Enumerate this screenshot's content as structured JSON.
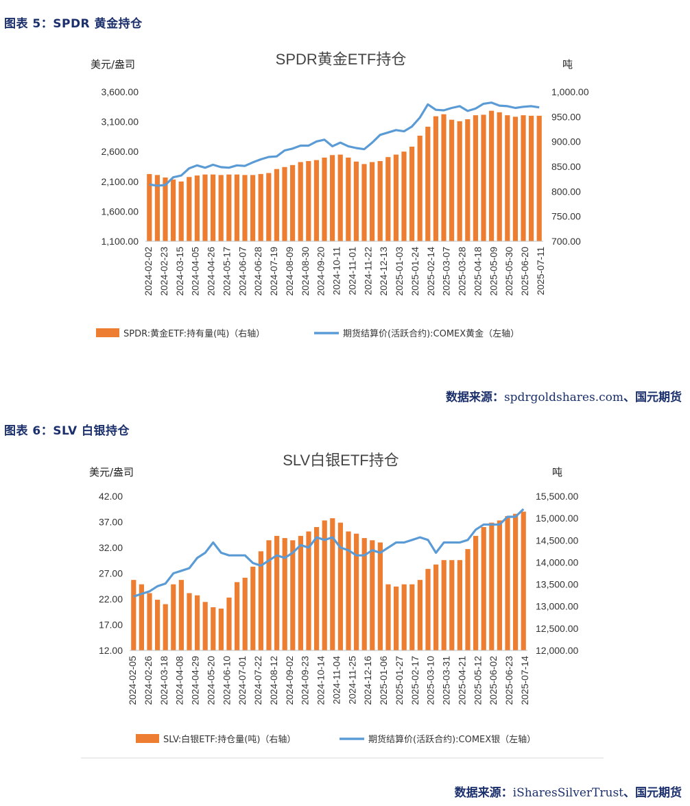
{
  "figures": [
    {
      "caption": "图表 5：SPDR 黄金持仓",
      "source_label": "数据来源：",
      "source_text": "spdrgoldshares.com",
      "source_sep": "、",
      "source_org": "国元期货",
      "chart_data": {
        "type": "bar",
        "title": "SPDR黄金ETF持仓",
        "left_unit": "美元/盎司",
        "right_unit": "吨",
        "left_ticks": [
          "3,600.00",
          "3,100.00",
          "2,600.00",
          "2,100.00",
          "1,600.00",
          "1,100.00"
        ],
        "right_ticks": [
          "1,000.00",
          "950.00",
          "900.00",
          "850.00",
          "800.00",
          "750.00",
          "700.00"
        ],
        "ylim_left": [
          1100,
          3600
        ],
        "ylim_right": [
          700,
          1000
        ],
        "x_labels": [
          "2024-02-02",
          "2024-02-23",
          "2024-03-15",
          "2024-04-05",
          "2024-04-26",
          "2024-05-17",
          "2024-06-07",
          "2024-06-28",
          "2024-07-19",
          "2024-08-09",
          "2024-08-30",
          "2024-09-20",
          "2024-10-11",
          "2024-11-01",
          "2024-11-22",
          "2024-12-13",
          "2025-01-03",
          "2025-01-24",
          "2025-02-14",
          "2025-03-07",
          "2025-03-28",
          "2025-04-18",
          "2025-05-09",
          "2025-05-30",
          "2025-06-20",
          "2025-07-11"
        ],
        "bar_series": {
          "name": "SPDR:黄金ETF:持有量(吨)（右轴）",
          "color": "#ed7d31",
          "values": [
            835,
            833,
            828,
            824,
            820,
            829,
            832,
            834,
            834,
            833,
            834,
            834,
            833,
            833,
            835,
            837,
            845,
            849,
            853,
            859,
            861,
            863,
            868,
            873,
            874,
            868,
            860,
            855,
            859,
            861,
            869,
            874,
            880,
            890,
            912,
            930,
            951,
            955,
            944,
            941,
            945,
            953,
            954,
            962,
            959,
            953,
            950,
            953,
            952,
            952
          ]
        },
        "line_series": {
          "name": "期货结算价(活跃合约):COMEX黄金（左轴）",
          "color": "#5b9bd5",
          "values": [
            2050,
            2030,
            2040,
            2170,
            2200,
            2320,
            2370,
            2330,
            2380,
            2340,
            2330,
            2370,
            2360,
            2420,
            2470,
            2510,
            2520,
            2620,
            2650,
            2700,
            2700,
            2770,
            2800,
            2690,
            2750,
            2690,
            2660,
            2640,
            2750,
            2880,
            2920,
            2960,
            2940,
            3020,
            3170,
            3390,
            3300,
            3290,
            3330,
            3360,
            3280,
            3320,
            3400,
            3420,
            3370,
            3360,
            3330,
            3350,
            3360,
            3340
          ]
        }
      }
    },
    {
      "caption": "图表 6：SLV 白银持仓",
      "source_label": "数据来源：",
      "source_text": "iSharesSilverTrust",
      "source_sep": "、",
      "source_org": "国元期货",
      "chart_data": {
        "type": "bar",
        "title": "SLV白银ETF持仓",
        "left_unit": "美元/盎司",
        "right_unit": "吨",
        "left_ticks": [
          "42.00",
          "37.00",
          "32.00",
          "27.00",
          "22.00",
          "17.00",
          "12.00"
        ],
        "right_ticks": [
          "15,500.00",
          "15,000.00",
          "14,500.00",
          "14,000.00",
          "13,500.00",
          "13,000.00",
          "12,500.00",
          "12,000.00"
        ],
        "ylim_left": [
          12,
          42
        ],
        "ylim_right": [
          12000,
          15500
        ],
        "x_labels": [
          "2024-02-05",
          "2024-02-26",
          "2024-03-18",
          "2024-04-08",
          "2024-04-29",
          "2024-05-20",
          "2024-06-10",
          "2024-07-01",
          "2024-07-22",
          "2024-08-12",
          "2024-09-02",
          "2024-09-23",
          "2024-10-14",
          "2024-11-04",
          "2024-11-25",
          "2024-12-16",
          "2025-01-06",
          "2025-01-27",
          "2025-02-17",
          "2025-03-10",
          "2025-03-31",
          "2025-04-21",
          "2025-05-12",
          "2025-06-02",
          "2025-06-23",
          "2025-07-14"
        ],
        "bar_series": {
          "name": "SLV:白银ETF:持仓量(吨)（右轴）",
          "color": "#ed7d31",
          "values": [
            13600,
            13500,
            13300,
            13150,
            13050,
            13500,
            13600,
            13300,
            13250,
            13100,
            12980,
            12950,
            13200,
            13550,
            13650,
            13900,
            14250,
            14500,
            14600,
            14550,
            14500,
            14600,
            14700,
            14800,
            14950,
            15000,
            14900,
            14700,
            14650,
            14550,
            14500,
            14450,
            13500,
            13450,
            13500,
            13500,
            13600,
            13850,
            13950,
            14050,
            14050,
            14050,
            14300,
            14600,
            14800,
            14900,
            14950,
            15050,
            15100,
            15150
          ]
        },
        "line_series": {
          "name": "期货结算价(活跃合约):COMEX银（左轴）",
          "color": "#5b9bd5",
          "values": [
            22.5,
            23.0,
            23.5,
            24.5,
            25.0,
            27.0,
            27.5,
            28.0,
            30.0,
            31.0,
            33.0,
            31.0,
            30.5,
            30.5,
            30.5,
            29.0,
            28.5,
            29.5,
            30.5,
            30.0,
            31.0,
            32.5,
            32.0,
            34.0,
            33.5,
            34.0,
            32.0,
            31.5,
            30.5,
            30.5,
            31.5,
            31.0,
            32.0,
            33.0,
            33.0,
            33.5,
            34.0,
            33.5,
            31.0,
            33.0,
            33.0,
            33.0,
            33.5,
            35.5,
            36.5,
            36.5,
            36.5,
            38.0,
            38.0,
            39.5
          ]
        }
      }
    }
  ]
}
